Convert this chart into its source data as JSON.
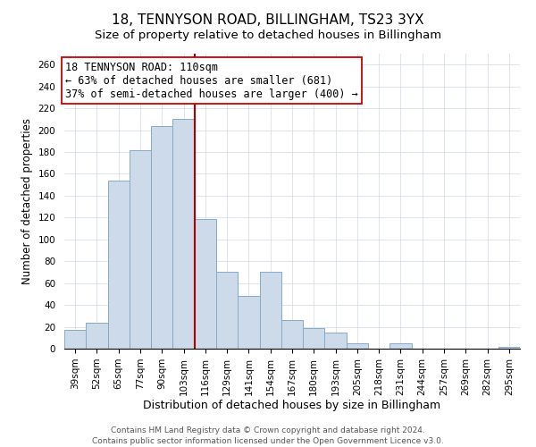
{
  "title": "18, TENNYSON ROAD, BILLINGHAM, TS23 3YX",
  "subtitle": "Size of property relative to detached houses in Billingham",
  "xlabel": "Distribution of detached houses by size in Billingham",
  "ylabel": "Number of detached properties",
  "footer_line1": "Contains HM Land Registry data © Crown copyright and database right 2024.",
  "footer_line2": "Contains public sector information licensed under the Open Government Licence v3.0.",
  "categories": [
    "39sqm",
    "52sqm",
    "65sqm",
    "77sqm",
    "90sqm",
    "103sqm",
    "116sqm",
    "129sqm",
    "141sqm",
    "154sqm",
    "167sqm",
    "180sqm",
    "193sqm",
    "205sqm",
    "218sqm",
    "231sqm",
    "244sqm",
    "257sqm",
    "269sqm",
    "282sqm",
    "295sqm"
  ],
  "values": [
    17,
    24,
    154,
    182,
    204,
    210,
    119,
    70,
    48,
    70,
    26,
    19,
    15,
    5,
    0,
    5,
    0,
    0,
    0,
    0,
    2
  ],
  "bar_color": "#ccdaea",
  "bar_edge_color": "#85aac8",
  "reference_line_color": "#aa0000",
  "annotation_title": "18 TENNYSON ROAD: 110sqm",
  "annotation_line1": "← 63% of detached houses are smaller (681)",
  "annotation_line2": "37% of semi-detached houses are larger (400) →",
  "annotation_box_edge": "#cc0000",
  "ylim": [
    0,
    270
  ],
  "yticks": [
    0,
    20,
    40,
    60,
    80,
    100,
    120,
    140,
    160,
    180,
    200,
    220,
    240,
    260
  ],
  "title_fontsize": 11,
  "subtitle_fontsize": 9.5,
  "xlabel_fontsize": 9,
  "ylabel_fontsize": 8.5,
  "tick_fontsize": 7.5,
  "annotation_fontsize": 8.5,
  "footer_fontsize": 6.5
}
